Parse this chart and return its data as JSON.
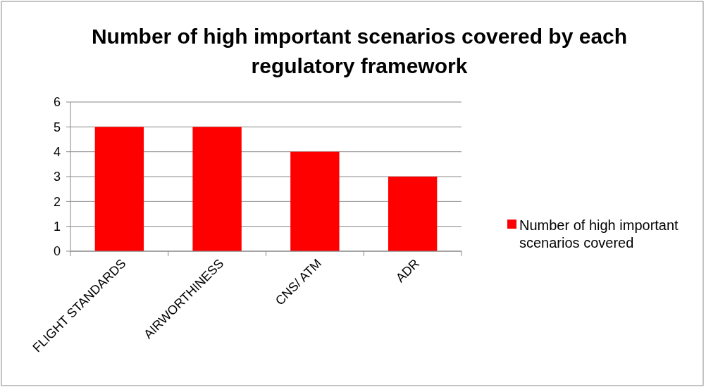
{
  "chart_data": {
    "type": "bar",
    "title": "Number of high important scenarios covered by each regulatory framework",
    "categories": [
      "FLIGHT STANDARDS",
      "AIRWORTHINESS",
      "CNS/ ATM",
      "ADR"
    ],
    "series": [
      {
        "name": "Number of high important scenarios covered",
        "color": "#ff0000",
        "values": [
          5,
          5,
          4,
          3
        ]
      }
    ],
    "ylim": [
      0,
      6
    ],
    "yticks": [
      0,
      1,
      2,
      3,
      4,
      5,
      6
    ],
    "grid": "y",
    "legend": "right"
  }
}
